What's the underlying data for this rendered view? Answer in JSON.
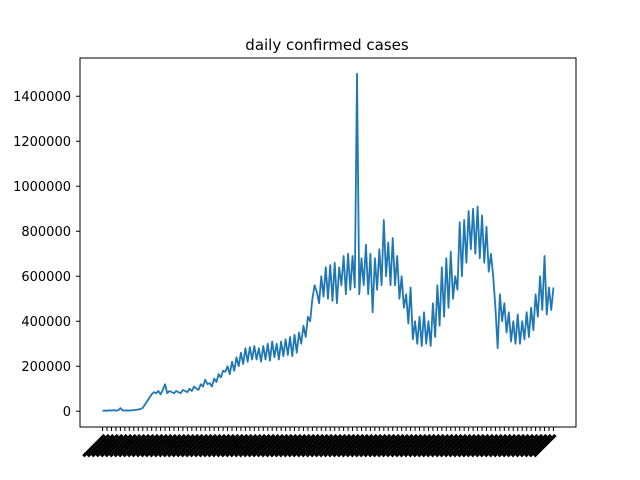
{
  "chart_data": {
    "type": "line",
    "title": "daily confirmed cases",
    "xlabel": "",
    "ylabel": "",
    "ylim": [
      -70000,
      1570000
    ],
    "yticks": [
      0,
      200000,
      400000,
      600000,
      800000,
      1000000,
      1200000,
      1400000
    ],
    "ytick_labels": [
      "0",
      "200000",
      "400000",
      "600000",
      "800000",
      "1000000",
      "1200000",
      "1400000"
    ],
    "x_tick_labels_legible": false,
    "grid": false,
    "legend": "none",
    "series": [
      {
        "color": "#1f77b4",
        "x_range": [
          0,
          460
        ],
        "y": [
          2000,
          3000,
          2500,
          4000,
          3000,
          5000,
          3000,
          4000,
          14000,
          4000,
          3000,
          4000,
          3000,
          4000,
          5000,
          6000,
          8000,
          10000,
          15000,
          30000,
          45000,
          60000,
          75000,
          85000,
          80000,
          90000,
          75000,
          95000,
          120000,
          80000,
          90000,
          85000,
          80000,
          90000,
          85000,
          80000,
          95000,
          90000,
          85000,
          100000,
          90000,
          110000,
          100000,
          95000,
          120000,
          110000,
          140000,
          120000,
          125000,
          110000,
          145000,
          130000,
          165000,
          150000,
          180000,
          175000,
          200000,
          165000,
          220000,
          180000,
          240000,
          200000,
          260000,
          210000,
          280000,
          220000,
          285000,
          230000,
          290000,
          230000,
          280000,
          220000,
          290000,
          230000,
          300000,
          225000,
          310000,
          240000,
          300000,
          230000,
          310000,
          245000,
          320000,
          250000,
          330000,
          245000,
          340000,
          260000,
          350000,
          300000,
          380000,
          330000,
          420000,
          400000,
          500000,
          560000,
          530000,
          480000,
          600000,
          510000,
          640000,
          500000,
          650000,
          490000,
          660000,
          480000,
          640000,
          560000,
          690000,
          520000,
          700000,
          540000,
          690000,
          550000,
          1500000,
          520000,
          680000,
          560000,
          740000,
          520000,
          700000,
          440000,
          680000,
          540000,
          720000,
          560000,
          850000,
          600000,
          750000,
          560000,
          770000,
          560000,
          690000,
          500000,
          600000,
          460000,
          520000,
          390000,
          550000,
          320000,
          400000,
          300000,
          420000,
          290000,
          440000,
          300000,
          400000,
          290000,
          480000,
          330000,
          560000,
          380000,
          640000,
          420000,
          680000,
          460000,
          710000,
          500000,
          600000,
          540000,
          840000,
          600000,
          850000,
          660000,
          890000,
          720000,
          900000,
          700000,
          910000,
          680000,
          870000,
          660000,
          820000,
          620000,
          700000,
          600000,
          460000,
          280000,
          520000,
          400000,
          480000,
          350000,
          440000,
          310000,
          400000,
          300000,
          430000,
          300000,
          400000,
          320000,
          440000,
          330000,
          460000,
          360000,
          520000,
          420000,
          600000,
          450000,
          690000,
          430000,
          550000,
          450000,
          550000
        ]
      }
    ]
  }
}
